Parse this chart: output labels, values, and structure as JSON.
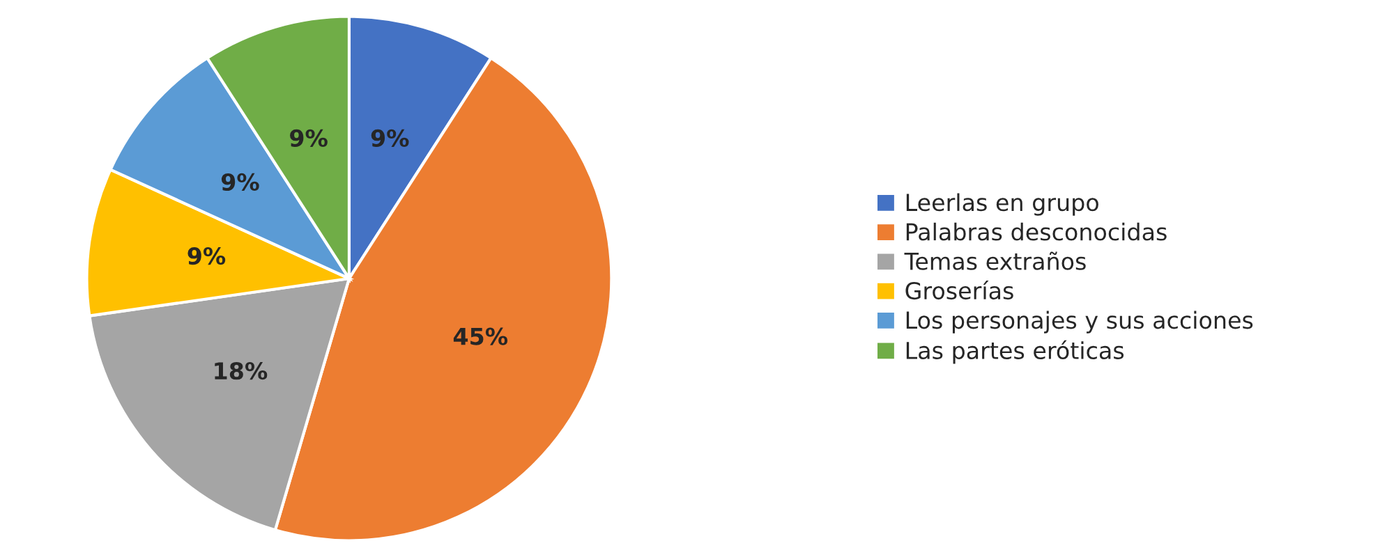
{
  "chart_data": {
    "type": "pie",
    "categories": [
      "Leerlas en grupo",
      "Palabras desconocidas",
      "Temas extraños",
      "Groserías",
      "Los personajes y sus acciones",
      "Las partes eróticas"
    ],
    "values": [
      9,
      45,
      18,
      9,
      9,
      9
    ],
    "colors": [
      "#4472c4",
      "#ed7d31",
      "#a5a5a5",
      "#ffc000",
      "#5b9bd5",
      "#70ad47"
    ],
    "value_labels": [
      "9%",
      "45%",
      "18%",
      "9%",
      "9%",
      "9%"
    ],
    "legend": "right"
  }
}
